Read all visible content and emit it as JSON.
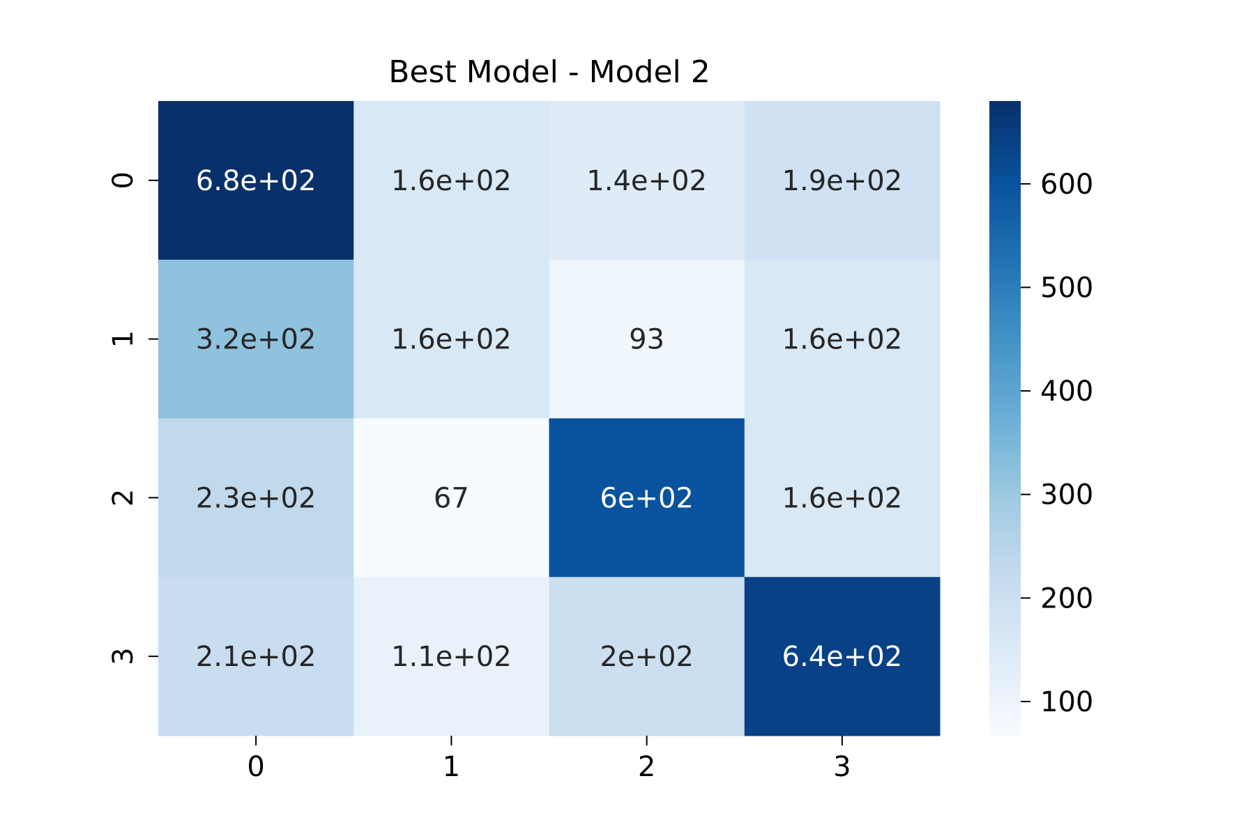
{
  "chart_data": {
    "type": "heatmap",
    "title": "Best Model - Model 2",
    "xlabel": "",
    "ylabel": "",
    "x_tick_labels": [
      "0",
      "1",
      "2",
      "3"
    ],
    "y_tick_labels": [
      "0",
      "1",
      "2",
      "3"
    ],
    "values": [
      [
        680,
        160,
        140,
        190
      ],
      [
        320,
        160,
        93,
        160
      ],
      [
        230,
        67,
        600,
        160
      ],
      [
        210,
        110,
        200,
        640
      ]
    ],
    "cell_labels": [
      [
        "6.8e+02",
        "1.6e+02",
        "1.4e+02",
        "1.9e+02"
      ],
      [
        "3.2e+02",
        "1.6e+02",
        "93",
        "1.6e+02"
      ],
      [
        "2.3e+02",
        "67",
        "6e+02",
        "1.6e+02"
      ],
      [
        "2.1e+02",
        "1.1e+02",
        "2e+02",
        "6.4e+02"
      ]
    ],
    "colormap": "Blues",
    "colorbar": {
      "range": [
        67,
        680
      ],
      "ticks": [
        100,
        200,
        300,
        400,
        500,
        600
      ],
      "tick_labels": [
        "100",
        "200",
        "300",
        "400",
        "500",
        "600"
      ]
    },
    "grid": false,
    "legend": "colorbar-right"
  }
}
